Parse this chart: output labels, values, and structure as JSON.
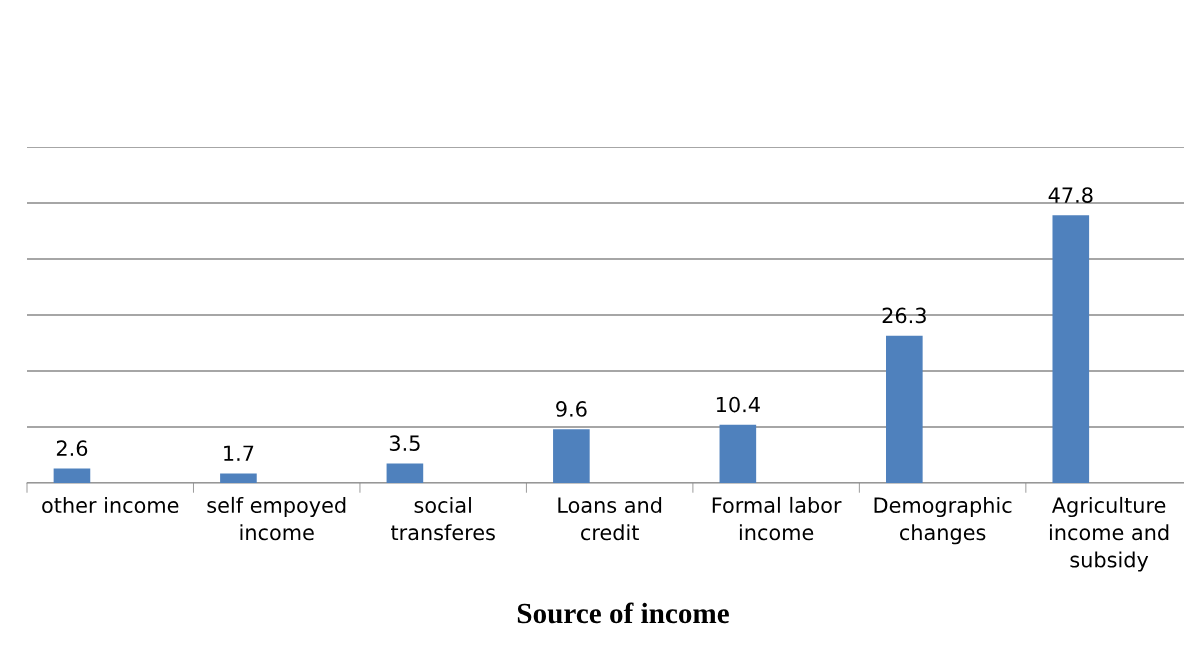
{
  "chart_data": {
    "type": "bar",
    "xlabel": "Source of income",
    "categories": [
      "other income",
      "self empoyed\nincome",
      "social\ntransferes",
      "Loans and\ncredit",
      "Formal labor\nincome",
      "Demographic\nchanges",
      "Agriculture\nincome and\nsubsidy"
    ],
    "values": [
      2.6,
      1.7,
      3.5,
      9.6,
      10.4,
      26.3,
      47.8
    ],
    "color": "#4f81bd",
    "ylim": [
      0,
      60
    ],
    "yticks": [
      {
        "value": 0,
        "label": null
      },
      {
        "value": 10,
        "label": null
      },
      {
        "value": 20,
        "label": null
      },
      {
        "value": 30,
        "label": null
      },
      {
        "value": 40,
        "label": null
      },
      {
        "value": 50,
        "label": null
      },
      {
        "value": 60,
        "label": null
      }
    ],
    "grid": "y",
    "data_labels": true,
    "tick_labels": "x"
  }
}
